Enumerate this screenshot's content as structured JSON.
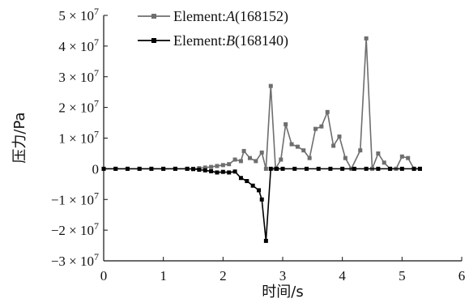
{
  "chart_data": {
    "type": "line",
    "xlabel": "时间/s",
    "ylabel": "压力/Pa",
    "xlim": [
      0,
      6
    ],
    "ylim": [
      -30000000,
      50000000
    ],
    "x_ticks": [
      0,
      1,
      2,
      3,
      4,
      5,
      6
    ],
    "y_ticks": [
      -30000000,
      -20000000,
      -10000000,
      0,
      10000000,
      20000000,
      30000000,
      40000000,
      50000000
    ],
    "x_tick_labels": [
      "0",
      "1",
      "2",
      "3",
      "4",
      "5",
      "6"
    ],
    "y_tick_labels": [
      "−3 × 10",
      "−2 × 10",
      "−1 × 10",
      "0",
      "1 × 10",
      "2 × 10",
      "3 × 10",
      "4 × 10",
      "5 × 10"
    ],
    "y_tick_exponent": "7",
    "grid": false,
    "legend_position": "top-center",
    "series": [
      {
        "name_prefix": "Element:",
        "name_italic": "A",
        "name_suffix": "(168152)",
        "color": "#6e6e6e",
        "marker": "square",
        "points": [
          [
            0,
            0
          ],
          [
            0.2,
            0
          ],
          [
            0.4,
            0
          ],
          [
            0.6,
            0
          ],
          [
            0.8,
            0
          ],
          [
            1.0,
            0
          ],
          [
            1.2,
            0
          ],
          [
            1.4,
            0
          ],
          [
            1.5,
            0
          ],
          [
            1.6,
            200000
          ],
          [
            1.7,
            400000
          ],
          [
            1.8,
            600000
          ],
          [
            1.9,
            900000
          ],
          [
            2.0,
            1200000
          ],
          [
            2.1,
            1500000
          ],
          [
            2.2,
            3000000
          ],
          [
            2.3,
            2500000
          ],
          [
            2.35,
            5800000
          ],
          [
            2.45,
            3500000
          ],
          [
            2.55,
            2500000
          ],
          [
            2.65,
            5300000
          ],
          [
            2.72,
            0
          ],
          [
            2.8,
            27000000
          ],
          [
            2.88,
            0
          ],
          [
            2.97,
            3000000
          ],
          [
            3.05,
            14500000
          ],
          [
            3.15,
            8000000
          ],
          [
            3.25,
            7200000
          ],
          [
            3.35,
            6000000
          ],
          [
            3.45,
            3500000
          ],
          [
            3.55,
            13000000
          ],
          [
            3.65,
            13800000
          ],
          [
            3.75,
            18500000
          ],
          [
            3.85,
            7500000
          ],
          [
            3.95,
            10500000
          ],
          [
            4.05,
            3500000
          ],
          [
            4.15,
            0
          ],
          [
            4.3,
            6000000
          ],
          [
            4.4,
            42500000
          ],
          [
            4.5,
            0
          ],
          [
            4.6,
            5000000
          ],
          [
            4.7,
            2000000
          ],
          [
            4.8,
            0
          ],
          [
            4.9,
            0
          ],
          [
            5.0,
            4000000
          ],
          [
            5.1,
            3500000
          ],
          [
            5.2,
            0
          ],
          [
            5.3,
            0
          ]
        ]
      },
      {
        "name_prefix": "Element:",
        "name_italic": "B",
        "name_suffix": "(168140)",
        "color": "#000000",
        "marker": "square",
        "points": [
          [
            0,
            0
          ],
          [
            0.2,
            0
          ],
          [
            0.4,
            0
          ],
          [
            0.6,
            0
          ],
          [
            0.8,
            0
          ],
          [
            1.0,
            0
          ],
          [
            1.2,
            0
          ],
          [
            1.4,
            0
          ],
          [
            1.5,
            -100000
          ],
          [
            1.6,
            -300000
          ],
          [
            1.7,
            -500000
          ],
          [
            1.8,
            -800000
          ],
          [
            1.9,
            -1200000
          ],
          [
            2.0,
            -1000000
          ],
          [
            2.1,
            -1200000
          ],
          [
            2.2,
            -900000
          ],
          [
            2.3,
            -3000000
          ],
          [
            2.4,
            -4000000
          ],
          [
            2.5,
            -5500000
          ],
          [
            2.6,
            -7000000
          ],
          [
            2.65,
            -10000000
          ],
          [
            2.72,
            -23500000
          ],
          [
            2.8,
            0
          ],
          [
            2.9,
            0
          ],
          [
            3.0,
            0
          ],
          [
            3.2,
            0
          ],
          [
            3.4,
            0
          ],
          [
            3.6,
            0
          ],
          [
            3.8,
            0
          ],
          [
            4.0,
            0
          ],
          [
            4.2,
            0
          ],
          [
            4.4,
            0
          ],
          [
            4.6,
            0
          ],
          [
            4.8,
            0
          ],
          [
            5.0,
            0
          ],
          [
            5.2,
            0
          ],
          [
            5.3,
            0
          ]
        ]
      }
    ]
  }
}
